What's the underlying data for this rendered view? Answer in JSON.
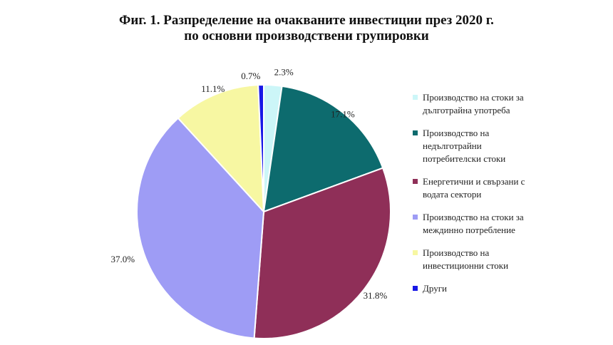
{
  "chart_data": {
    "type": "pie",
    "title_lines": [
      "Фиг. 1. Разпределение на очакваните инвестиции през 2020 г.",
      "по основни производствени групировки"
    ],
    "slices": [
      {
        "label": "Производство на стоки за дълготрайна употреба",
        "value": 2.3,
        "display": "2.3%",
        "color": "#ccf6f8"
      },
      {
        "label": "Производство на недълготрайни потребителски стоки",
        "value": 17.1,
        "display": "17.1%",
        "color": "#0d6b6e"
      },
      {
        "label": "Енергетични и свързани с водата сектори",
        "value": 31.8,
        "display": "31.8%",
        "color": "#8f2f58"
      },
      {
        "label": "Производство на стоки за междинно потребление",
        "value": 37.0,
        "display": "37.0%",
        "color": "#9e9cf5"
      },
      {
        "label": "Производство на инвестиционни стоки",
        "value": 11.1,
        "display": "11.1%",
        "color": "#f7f7a2"
      },
      {
        "label": "Други",
        "value": 0.7,
        "display": "0.7%",
        "color": "#1818e6"
      }
    ]
  }
}
